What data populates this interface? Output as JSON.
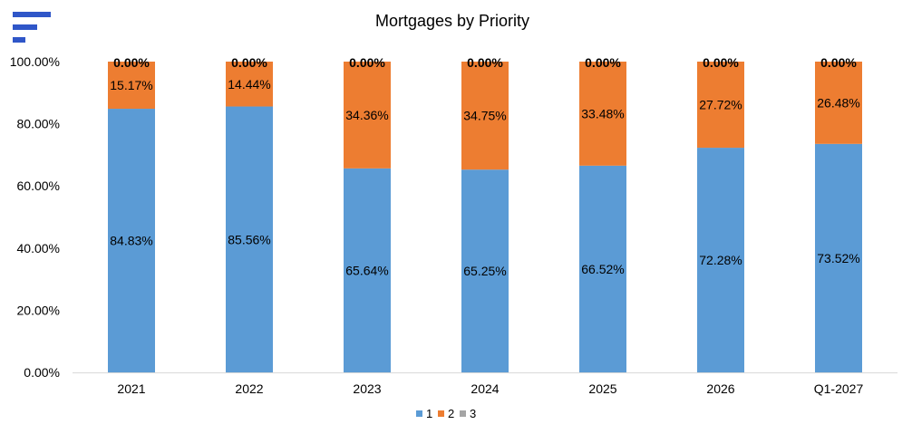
{
  "colors": {
    "series_1": "#5b9bd5",
    "series_2": "#ed7d31",
    "series_3": "#a5a5a5",
    "axis": "#d9d9d9",
    "text": "#000000",
    "logo": "#2f56c8"
  },
  "logo": {
    "icon": "bars-logo-icon"
  },
  "chart_data": {
    "type": "bar",
    "stacked": true,
    "title": "Mortgages by Priority",
    "xlabel": "",
    "ylabel": "",
    "ylim": [
      0,
      100
    ],
    "y_ticks": [
      "0.00%",
      "20.00%",
      "40.00%",
      "60.00%",
      "80.00%",
      "100.00%"
    ],
    "categories": [
      "2021",
      "2022",
      "2023",
      "2024",
      "2025",
      "2026",
      "Q1-2027"
    ],
    "series": [
      {
        "name": "1",
        "values": [
          84.83,
          85.56,
          65.64,
          65.25,
          66.52,
          72.28,
          73.52
        ],
        "labels": [
          "84.83%",
          "85.56%",
          "65.64%",
          "65.25%",
          "66.52%",
          "72.28%",
          "73.52%"
        ]
      },
      {
        "name": "2",
        "values": [
          15.17,
          14.44,
          34.36,
          34.75,
          33.48,
          27.72,
          26.48
        ],
        "labels": [
          "15.17%",
          "14.44%",
          "34.36%",
          "34.75%",
          "33.48%",
          "27.72%",
          "26.48%"
        ]
      },
      {
        "name": "3",
        "values": [
          0,
          0,
          0,
          0,
          0,
          0,
          0
        ],
        "labels": [
          "0.00%",
          "0.00%",
          "0.00%",
          "0.00%",
          "0.00%",
          "0.00%",
          "0.00%"
        ]
      }
    ],
    "legend_position": "bottom",
    "grid": false
  }
}
